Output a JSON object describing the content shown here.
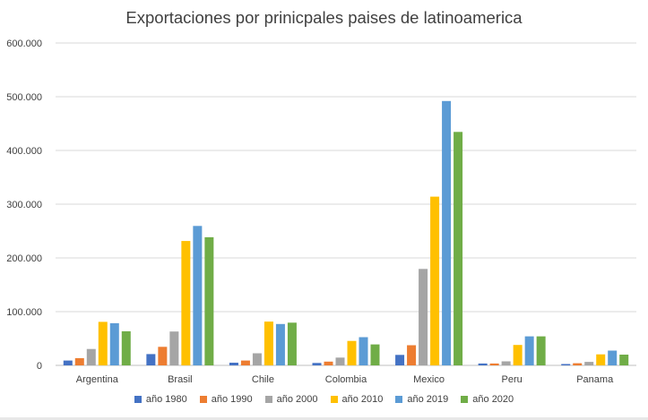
{
  "chart_data": {
    "type": "bar",
    "title": "Exportaciones por prinicpales paises de latinoamerica",
    "categories": [
      "Argentina",
      "Brasil",
      "Chile",
      "Colombia",
      "Mexico",
      "Peru",
      "Panama"
    ],
    "ylim": [
      0,
      600000
    ],
    "yticks": [
      "0",
      "100.000",
      "200.000",
      "300.000",
      "400.000",
      "500.000",
      "600.000"
    ],
    "ytick_values": [
      0,
      100000,
      200000,
      300000,
      400000,
      500000,
      600000
    ],
    "legend_position": "bottom",
    "grid": true,
    "series": [
      {
        "name": "año 1980",
        "color": "#4472c4",
        "values": [
          9000,
          21000,
          5000,
          4500,
          19500,
          3500,
          2500
        ]
      },
      {
        "name": "año 1990",
        "color": "#ed7d31",
        "values": [
          13500,
          34500,
          9000,
          7000,
          37500,
          3500,
          4000
        ]
      },
      {
        "name": "año 2000",
        "color": "#a5a5a5",
        "values": [
          30500,
          63000,
          22500,
          14500,
          179500,
          7500,
          6500
        ]
      },
      {
        "name": "año 2010",
        "color": "#ffc000",
        "values": [
          81000,
          231500,
          81500,
          45500,
          314000,
          38000,
          20500
        ]
      },
      {
        "name": "año 2019",
        "color": "#5b9bd5",
        "values": [
          78500,
          259500,
          77000,
          52500,
          492000,
          54000,
          27500
        ]
      },
      {
        "name": "año 2020",
        "color": "#70ad47",
        "values": [
          63500,
          238500,
          79500,
          39000,
          434500,
          54000,
          20000
        ]
      }
    ]
  }
}
